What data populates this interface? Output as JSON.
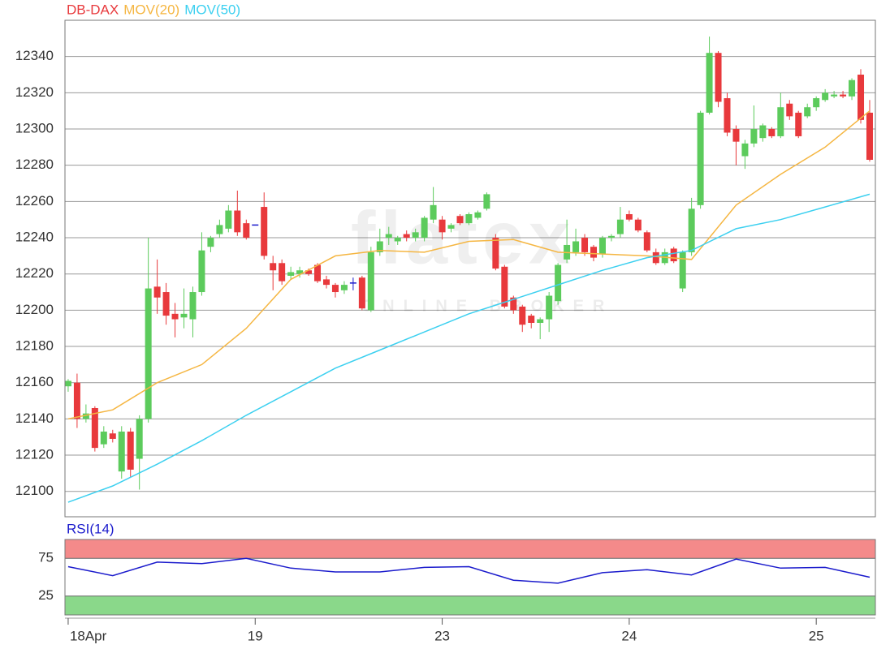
{
  "chart_data": [
    {
      "type": "candlestick",
      "title": "DB-DAX",
      "title_color": "#e8393c",
      "watermark": "flatex",
      "watermark_sub": "ONLINE BROKER",
      "categories": [
        "18Apr",
        null,
        null,
        null,
        null,
        null,
        null,
        null,
        null,
        null,
        null,
        null,
        null,
        null,
        null,
        null,
        null,
        null,
        null,
        null,
        null,
        "19",
        null,
        null,
        null,
        null,
        null,
        null,
        null,
        null,
        null,
        null,
        null,
        null,
        null,
        null,
        null,
        null,
        null,
        null,
        null,
        null,
        "23",
        null,
        null,
        null,
        null,
        null,
        null,
        null,
        null,
        null,
        null,
        null,
        null,
        null,
        null,
        null,
        null,
        null,
        null,
        null,
        null,
        "24",
        null,
        null,
        null,
        null,
        null,
        null,
        null,
        null,
        null,
        null,
        null,
        null,
        null,
        null,
        null,
        null,
        null,
        null,
        null,
        null,
        "25",
        null,
        null,
        null,
        null,
        null,
        null
      ],
      "open": [
        12158,
        12160,
        12140,
        12146,
        12126,
        12132,
        12111,
        12133,
        12118,
        12140,
        12213,
        12210,
        12198,
        12196,
        12195,
        12210,
        12235,
        12242,
        12245,
        12255,
        12248,
        12247,
        12257,
        12226,
        12226,
        12219,
        12220,
        12222,
        12225,
        12217,
        12214,
        12211,
        12215,
        12218,
        12200,
        12232,
        12240,
        12238,
        12242,
        12240,
        12240,
        12250,
        12250,
        12245,
        12252,
        12248,
        12251,
        12256,
        12240,
        12224,
        12207,
        12202,
        12197,
        12193,
        12195,
        12205,
        12228,
        12232,
        12240,
        12235,
        12231,
        12240,
        12242,
        12253,
        12250,
        12243,
        12232,
        12226,
        12234,
        12212,
        12232,
        12258,
        12309,
        12342,
        12317,
        12300,
        12285,
        12292,
        12295,
        12300,
        12296,
        12314,
        12309,
        12307,
        12312,
        12316,
        12318,
        12319,
        12318,
        12330,
        12309
      ],
      "high": [
        12162,
        12165,
        12148,
        12147,
        12136,
        12134,
        12136,
        12135,
        12142,
        12240,
        12228,
        12215,
        12204,
        12212,
        12213,
        12243,
        12241,
        12250,
        12258,
        12266,
        12250,
        12247,
        12265,
        12230,
        12228,
        12224,
        12224,
        12223,
        12226,
        12219,
        12215,
        12216,
        12218,
        12219,
        12235,
        12245,
        12246,
        12241,
        12244,
        12245,
        12252,
        12268,
        12252,
        12248,
        12253,
        12254,
        12255,
        12265,
        12242,
        12225,
        12208,
        12203,
        12198,
        12196,
        12210,
        12226,
        12250,
        12245,
        12242,
        12236,
        12241,
        12242,
        12257,
        12255,
        12251,
        12244,
        12234,
        12234,
        12235,
        12233,
        12262,
        12310,
        12351,
        12343,
        12320,
        12302,
        12294,
        12313,
        12303,
        12301,
        12320,
        12316,
        12310,
        12314,
        12318,
        12322,
        12321,
        12321,
        12328,
        12333,
        12316
      ],
      "low": [
        12155,
        12135,
        12138,
        12122,
        12124,
        12127,
        12107,
        12108,
        12101,
        12138,
        12198,
        12192,
        12185,
        12190,
        12185,
        12208,
        12232,
        12240,
        12243,
        12241,
        12239,
        12247,
        12228,
        12211,
        12214,
        12217,
        12218,
        12219,
        12215,
        12212,
        12207,
        12209,
        12211,
        12200,
        12199,
        12230,
        12236,
        12236,
        12238,
        12238,
        12238,
        12248,
        12239,
        12243,
        12247,
        12247,
        12250,
        12255,
        12222,
        12201,
        12198,
        12188,
        12190,
        12184,
        12188,
        12203,
        12226,
        12230,
        12230,
        12227,
        12229,
        12238,
        12240,
        12249,
        12243,
        12232,
        12225,
        12225,
        12226,
        12210,
        12230,
        12256,
        12308,
        12312,
        12296,
        12280,
        12278,
        12290,
        12293,
        12295,
        12295,
        12305,
        12295,
        12306,
        12310,
        12315,
        12317,
        12317,
        12316,
        12303,
        12282
      ],
      "close": [
        12161,
        12140,
        12143,
        12124,
        12133,
        12129,
        12133,
        12112,
        12140,
        12212,
        12207,
        12197,
        12195,
        12198,
        12210,
        12233,
        12240,
        12247,
        12255,
        12243,
        12240,
        12247,
        12230,
        12222,
        12216,
        12221,
        12222,
        12220,
        12216,
        12214,
        12210,
        12214,
        12215,
        12201,
        12232,
        12238,
        12242,
        12240,
        12240,
        12243,
        12251,
        12258,
        12243,
        12247,
        12248,
        12253,
        12254,
        12264,
        12223,
        12202,
        12200,
        12192,
        12193,
        12195,
        12208,
        12225,
        12236,
        12238,
        12232,
        12229,
        12240,
        12241,
        12250,
        12250,
        12244,
        12233,
        12226,
        12232,
        12227,
        12232,
        12256,
        12309,
        12342,
        12315,
        12298,
        12293,
        12292,
        12300,
        12302,
        12296,
        12312,
        12307,
        12296,
        12312,
        12317,
        12320,
        12319,
        12318,
        12327,
        12305,
        12283
      ],
      "up_color": "#5ccb5c",
      "down_color": "#e8393c",
      "flat_color": "#1a1acc",
      "series": [
        {
          "name": "MOV(20)",
          "color": "#f5b642",
          "x": [
            0,
            5,
            10,
            15,
            20,
            25,
            30,
            35,
            40,
            45,
            50,
            55,
            60,
            65,
            70,
            75,
            80,
            85,
            90
          ],
          "values": [
            12140,
            12145,
            12160,
            12170,
            12190,
            12217,
            12230,
            12233,
            12232,
            12238,
            12239,
            12232,
            12231,
            12230,
            12228,
            12258,
            12275,
            12290,
            12310
          ]
        },
        {
          "name": "MOV(50)",
          "color": "#3cd0f0",
          "x": [
            0,
            5,
            10,
            15,
            20,
            25,
            30,
            35,
            40,
            45,
            50,
            55,
            60,
            65,
            70,
            75,
            80,
            85,
            90
          ],
          "values": [
            12094,
            12103,
            12115,
            12128,
            12142,
            12155,
            12168,
            12178,
            12188,
            12198,
            12206,
            12214,
            12222,
            12229,
            12233,
            12245,
            12250,
            12257,
            12264
          ]
        }
      ],
      "ylim": [
        12086,
        12360
      ],
      "yticks": [
        12100,
        12120,
        12140,
        12160,
        12180,
        12200,
        12220,
        12240,
        12260,
        12280,
        12300,
        12320,
        12340
      ],
      "grid": true
    },
    {
      "type": "line",
      "title": "RSI(14)",
      "title_color": "#1a1acc",
      "series": [
        {
          "name": "RSI(14)",
          "color": "#1a1acc",
          "x": [
            0,
            5,
            10,
            15,
            20,
            25,
            30,
            35,
            40,
            45,
            50,
            55,
            60,
            65,
            70,
            75,
            80,
            85,
            90
          ],
          "values": [
            64,
            52,
            70,
            68,
            75,
            62,
            57,
            57,
            63,
            64,
            46,
            42,
            56,
            60,
            53,
            74,
            62,
            63,
            50
          ]
        }
      ],
      "upper_band_color": "#f48a8a",
      "lower_band_color": "#8ad88a",
      "ylim": [
        0,
        100
      ],
      "yticks": [
        25,
        75
      ],
      "grid": true
    }
  ]
}
